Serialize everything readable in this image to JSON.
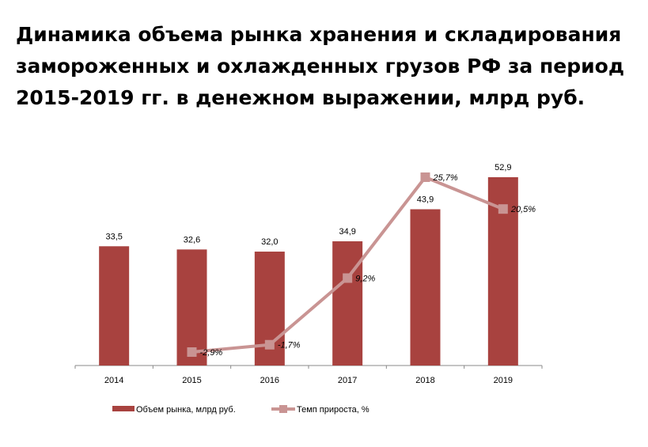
{
  "title_lines": [
    "Динамика объема рынка хранения и складирования",
    "замороженных и охлажденных грузов РФ за период",
    "2015-2019 гг. в денежном выражении, млрд руб."
  ],
  "colors": {
    "bar": "#a8423f",
    "line": "#c99493",
    "axis": "#888888"
  },
  "chart_data": {
    "type": "bar",
    "categories": [
      "2014",
      "2015",
      "2016",
      "2017",
      "2018",
      "2019"
    ],
    "series": [
      {
        "name": "Объем рынка, млрд руб.",
        "type": "bar",
        "axis": "primary",
        "values": [
          33.5,
          32.6,
          32.0,
          34.9,
          43.9,
          52.9
        ],
        "labels": [
          "33,5",
          "32,6",
          "32,0",
          "34,9",
          "43,9",
          "52,9"
        ]
      },
      {
        "name": "Темп прироста, %",
        "type": "line",
        "axis": "secondary",
        "values": [
          null,
          -2.9,
          -1.7,
          9.2,
          25.7,
          20.5
        ],
        "labels": [
          "",
          "-2,9%",
          "-1,7%",
          "9,2%",
          "25,7%",
          "20,5%"
        ]
      }
    ],
    "ylim": [
      0,
      60
    ],
    "y2lim": [
      -5,
      28
    ],
    "grid": false,
    "legend": "bottom"
  }
}
